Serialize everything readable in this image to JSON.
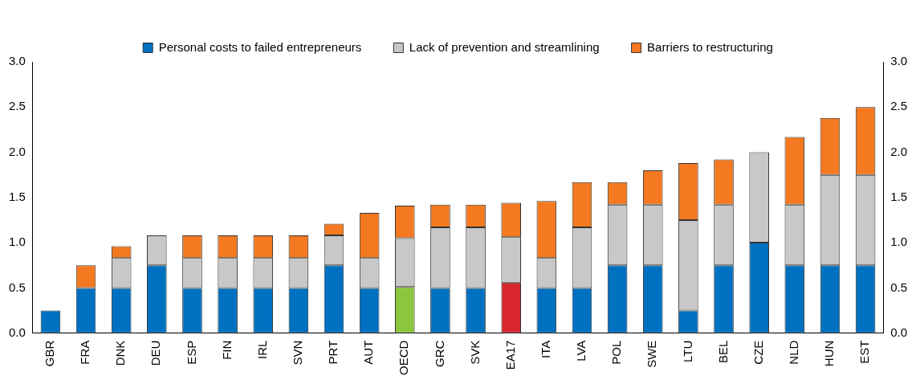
{
  "chart_data": {
    "type": "bar",
    "stacked": true,
    "categories": [
      "GBR",
      "FRA",
      "DNK",
      "DEU",
      "ESP",
      "FIN",
      "IRL",
      "SVN",
      "PRT",
      "AUT",
      "OECD",
      "GRC",
      "SVK",
      "EA17",
      "ITA",
      "LVA",
      "POL",
      "SWE",
      "LTU",
      "BEL",
      "CZE",
      "NLD",
      "HUN",
      "EST"
    ],
    "series": [
      {
        "name": "Personal costs to failed entrepreneurs",
        "color": "#0070c0",
        "colors": [
          "#0070c0",
          "#0070c0",
          "#0070c0",
          "#0070c0",
          "#0070c0",
          "#0070c0",
          "#0070c0",
          "#0070c0",
          "#0070c0",
          "#0070c0",
          "#8cc63f",
          "#0070c0",
          "#0070c0",
          "#d7262e",
          "#0070c0",
          "#0070c0",
          "#0070c0",
          "#0070c0",
          "#0070c0",
          "#0070c0",
          "#0070c0",
          "#0070c0",
          "#0070c0",
          "#0070c0"
        ],
        "values": [
          0.25,
          0.5,
          0.5,
          0.75,
          0.5,
          0.5,
          0.5,
          0.5,
          0.75,
          0.5,
          0.51,
          0.5,
          0.5,
          0.56,
          0.5,
          0.5,
          0.75,
          0.75,
          0.25,
          0.75,
          1.0,
          0.75,
          0.75,
          0.75
        ]
      },
      {
        "name": "Lack of prevention and streamlining",
        "color": "#c8c8c8",
        "values": [
          null,
          null,
          0.33,
          0.33,
          0.33,
          0.33,
          0.33,
          0.33,
          0.33,
          0.33,
          0.54,
          0.67,
          0.67,
          0.5,
          0.33,
          0.67,
          0.67,
          0.67,
          1.0,
          0.67,
          1.0,
          0.67,
          1.0,
          1.0
        ]
      },
      {
        "name": "Barriers to restructuring",
        "color": "#f47920",
        "values": [
          null,
          0.25,
          0.13,
          null,
          0.25,
          0.25,
          0.25,
          0.25,
          0.13,
          0.5,
          0.36,
          0.25,
          0.25,
          0.38,
          0.63,
          0.5,
          0.25,
          0.38,
          0.63,
          0.5,
          null,
          0.75,
          0.63,
          0.75
        ]
      }
    ],
    "ylim": [
      0,
      3
    ],
    "yticks": [
      {
        "value": 0,
        "label": "0.0"
      },
      {
        "value": 0.5,
        "label": "0.5"
      },
      {
        "value": 1,
        "label": "1.0"
      },
      {
        "value": 1.5,
        "label": "1.5"
      },
      {
        "value": 2,
        "label": "2.0"
      },
      {
        "value": 2.5,
        "label": "2.5"
      },
      {
        "value": 3,
        "label": "3.0"
      }
    ],
    "y2lim": [
      0,
      3
    ],
    "y2ticks": [
      {
        "value": 0,
        "label": "0.0"
      },
      {
        "value": 0.5,
        "label": "0.5"
      },
      {
        "value": 1,
        "label": "1.0"
      },
      {
        "value": 1.5,
        "label": "1.5"
      },
      {
        "value": 2,
        "label": "2.0"
      },
      {
        "value": 2.5,
        "label": "2.5"
      },
      {
        "value": 3,
        "label": "3.0"
      }
    ],
    "legend": "top",
    "grid": false
  }
}
